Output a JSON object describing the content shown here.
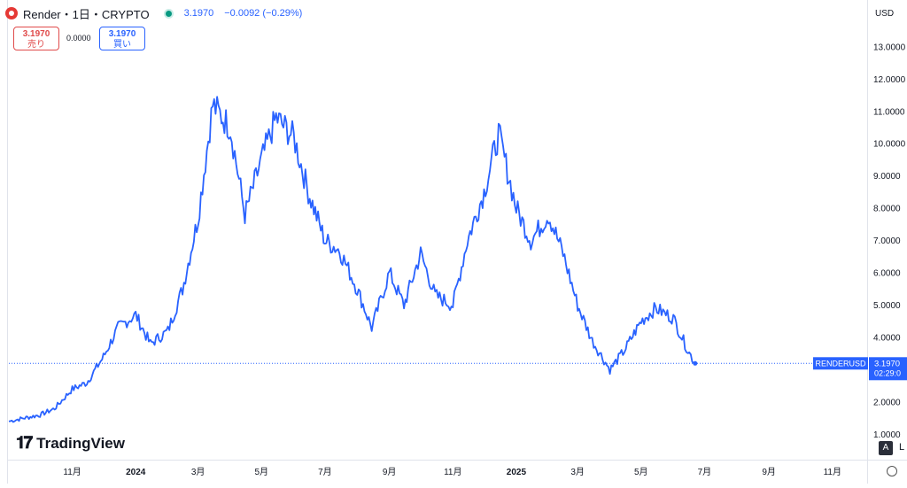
{
  "header": {
    "symbol": "Render・1日・CRYPTO",
    "quote_price": "3.1970",
    "quote_change": "−0.0092 (−0.29%)"
  },
  "trade": {
    "sell_price": "3.1970",
    "sell_label": "売り",
    "spread": "0.0000",
    "buy_price": "3.1970",
    "buy_label": "買い"
  },
  "currency": "USD",
  "brand": "TradingView",
  "bottom": {
    "auto_label": "A",
    "log_label": "L"
  },
  "colors": {
    "line": "#2962ff",
    "sell": "#e04a4a",
    "buy": "#2962ff",
    "badge": "#2962ff"
  },
  "icons": {
    "logo": "render-logo-icon",
    "live": "live-dot-icon",
    "settings": "gear-icon"
  },
  "chart_data": {
    "type": "line",
    "x_tick_labels": [
      "11月",
      "2024",
      "3月",
      "5月",
      "7月",
      "9月",
      "11月",
      "2025",
      "3月",
      "5月",
      "7月",
      "9月",
      "11月"
    ],
    "x_tick_dates": [
      "2023-11-01",
      "2024-01-01",
      "2024-03-01",
      "2024-05-01",
      "2024-07-01",
      "2024-09-01",
      "2024-11-01",
      "2025-01-01",
      "2025-03-01",
      "2025-05-01",
      "2025-07-01",
      "2025-09-01",
      "2025-11-01"
    ],
    "y_tick_labels": [
      "1.0000",
      "2.0000",
      "3.0000",
      "4.0000",
      "5.0000",
      "6.0000",
      "7.0000",
      "8.0000",
      "9.0000",
      "10.0000",
      "11.0000",
      "12.0000",
      "13.0000"
    ],
    "y_ticks": [
      1,
      2,
      3,
      4,
      5,
      6,
      7,
      8,
      9,
      10,
      11,
      12,
      13
    ],
    "ylim": [
      0.6,
      13.9
    ],
    "xlim": [
      "2023-09-01",
      "2025-12-01"
    ],
    "last_price_badge": {
      "label": "RENDERUSD",
      "value": "3.1970",
      "countdown": "02:29:0"
    },
    "series": [
      {
        "x": [
          "2023-09-01",
          "2023-09-15",
          "2023-10-01",
          "2023-10-15",
          "2023-11-01",
          "2023-11-15",
          "2023-12-01",
          "2023-12-15",
          "2024-01-01",
          "2024-01-15",
          "2024-02-01",
          "2024-02-15",
          "2024-03-01",
          "2024-03-15",
          "2024-04-01",
          "2024-04-15",
          "2024-05-01",
          "2024-05-15",
          "2024-06-01",
          "2024-06-15",
          "2024-07-01",
          "2024-07-15",
          "2024-08-01",
          "2024-08-15",
          "2024-09-01",
          "2024-09-15",
          "2024-10-01",
          "2024-10-15",
          "2024-11-01",
          "2024-11-15",
          "2024-12-01",
          "2024-12-15",
          "2025-01-01",
          "2025-01-15",
          "2025-02-01",
          "2025-02-15",
          "2025-03-01",
          "2025-03-15",
          "2025-04-01",
          "2025-04-15",
          "2025-05-01",
          "2025-05-15",
          "2025-06-01",
          "2025-06-15",
          "2025-06-22"
        ],
        "y": [
          1.4,
          1.5,
          1.6,
          1.8,
          2.4,
          2.6,
          3.4,
          4.3,
          4.7,
          3.8,
          4.2,
          5.5,
          7.7,
          11.2,
          10.5,
          7.8,
          9.5,
          10.8,
          10.2,
          8.5,
          7.0,
          6.7,
          5.5,
          4.3,
          6.0,
          5.0,
          6.6,
          5.3,
          5.0,
          7.0,
          8.5,
          10.3,
          8.0,
          7.0,
          7.8,
          6.6,
          5.0,
          3.9,
          3.0,
          3.6,
          4.5,
          4.9,
          4.6,
          3.6,
          3.197
        ]
      }
    ]
  }
}
